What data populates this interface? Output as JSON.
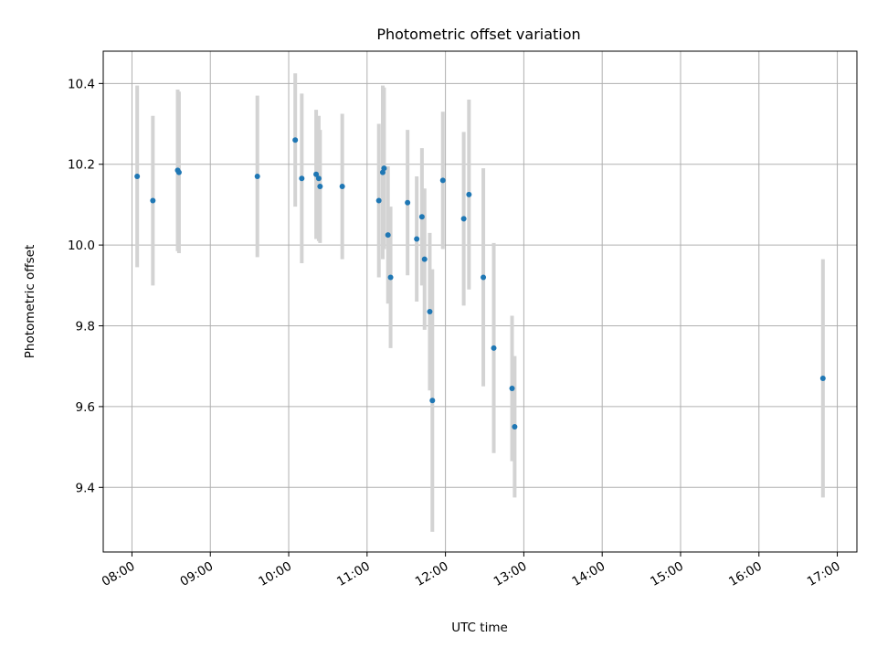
{
  "chart_data": {
    "type": "scatter",
    "title": "Photometric offset variation",
    "xlabel": "UTC time",
    "ylabel": "Photometric offset",
    "x_tick_labels": [
      "08:00",
      "09:00",
      "10:00",
      "11:00",
      "12:00",
      "13:00",
      "14:00",
      "15:00",
      "16:00",
      "17:00"
    ],
    "y_ticks": [
      9.4,
      9.6,
      9.8,
      10.0,
      10.2,
      10.4
    ],
    "xlim": [
      "07:38",
      "17:15"
    ],
    "ylim": [
      9.24,
      10.48
    ],
    "grid": true,
    "colors": {
      "point": "#1f77b4",
      "error_bar": "#d3d3d3",
      "grid": "#b0b0b0"
    },
    "points": [
      {
        "x": "08:04",
        "y": 10.17,
        "err": 0.225
      },
      {
        "x": "08:16",
        "y": 10.11,
        "err": 0.21
      },
      {
        "x": "08:35",
        "y": 10.185,
        "err": 0.2
      },
      {
        "x": "08:36",
        "y": 10.18,
        "err": 0.2
      },
      {
        "x": "09:36",
        "y": 10.17,
        "err": 0.2
      },
      {
        "x": "10:05",
        "y": 10.26,
        "err": 0.165
      },
      {
        "x": "10:10",
        "y": 10.165,
        "err": 0.21
      },
      {
        "x": "10:21",
        "y": 10.175,
        "err": 0.16
      },
      {
        "x": "10:23",
        "y": 10.165,
        "err": 0.155
      },
      {
        "x": "10:24",
        "y": 10.145,
        "err": 0.14
      },
      {
        "x": "10:41",
        "y": 10.145,
        "err": 0.18
      },
      {
        "x": "11:09",
        "y": 10.11,
        "err": 0.19
      },
      {
        "x": "11:12",
        "y": 10.18,
        "err": 0.215
      },
      {
        "x": "11:13",
        "y": 10.19,
        "err": 0.2
      },
      {
        "x": "11:16",
        "y": 10.025,
        "err": 0.17
      },
      {
        "x": "11:18",
        "y": 9.92,
        "err": 0.175
      },
      {
        "x": "11:31",
        "y": 10.105,
        "err": 0.18
      },
      {
        "x": "11:38",
        "y": 10.015,
        "err": 0.155
      },
      {
        "x": "11:42",
        "y": 10.07,
        "err": 0.17
      },
      {
        "x": "11:44",
        "y": 9.965,
        "err": 0.175
      },
      {
        "x": "11:48",
        "y": 9.835,
        "err": 0.195
      },
      {
        "x": "11:50",
        "y": 9.615,
        "err": 0.325
      },
      {
        "x": "11:58",
        "y": 10.16,
        "err": 0.17
      },
      {
        "x": "12:14",
        "y": 10.065,
        "err": 0.215
      },
      {
        "x": "12:18",
        "y": 10.125,
        "err": 0.235
      },
      {
        "x": "12:29",
        "y": 9.92,
        "err": 0.27
      },
      {
        "x": "12:37",
        "y": 9.745,
        "err": 0.26
      },
      {
        "x": "12:51",
        "y": 9.645,
        "err": 0.18
      },
      {
        "x": "12:53",
        "y": 9.55,
        "err": 0.175
      },
      {
        "x": "16:49",
        "y": 9.67,
        "err": 0.295
      }
    ]
  }
}
